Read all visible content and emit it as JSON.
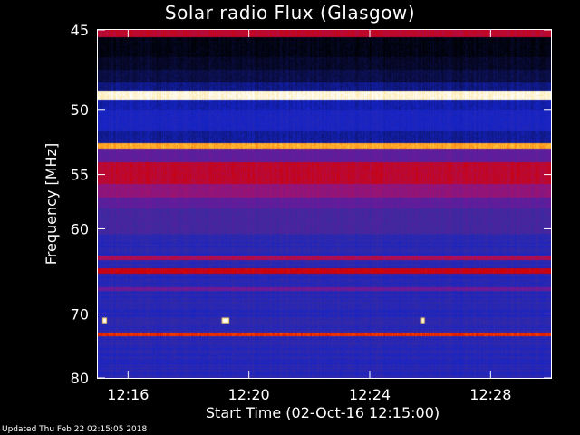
{
  "chart_data": {
    "type": "heatmap",
    "title": "Solar radio Flux (Glasgow)",
    "xlabel": "Start Time (02-Oct-16 12:15:00)",
    "ylabel": "Frequency [MHz]",
    "x_tick_labels": [
      "12:16",
      "12:20",
      "12:24",
      "12:28"
    ],
    "x_tick_minutes": [
      1,
      5,
      9,
      13
    ],
    "x_range_minutes": [
      0,
      15
    ],
    "y_ticks": [
      45,
      50,
      55,
      60,
      70,
      80
    ],
    "y_tick_labels": [
      "45",
      "50",
      "55",
      "60",
      "70",
      "80"
    ],
    "y_range_mhz": [
      45,
      80
    ],
    "y_scale": "reciprocal",
    "background_intensity": 0.28,
    "bands": [
      {
        "f_lo": 45.0,
        "f_hi": 45.4,
        "level": 0.62
      },
      {
        "f_lo": 45.4,
        "f_hi": 46.6,
        "level": 0.03
      },
      {
        "f_lo": 46.6,
        "f_hi": 47.4,
        "level": 0.06
      },
      {
        "f_lo": 47.4,
        "f_hi": 48.2,
        "level": 0.1
      },
      {
        "f_lo": 48.2,
        "f_hi": 48.7,
        "level": 0.16
      },
      {
        "f_lo": 48.7,
        "f_hi": 49.3,
        "level": 0.98
      },
      {
        "f_lo": 49.3,
        "f_hi": 50.0,
        "level": 0.2
      },
      {
        "f_lo": 50.0,
        "f_hi": 51.5,
        "level": 0.24
      },
      {
        "f_lo": 51.5,
        "f_hi": 52.5,
        "level": 0.18
      },
      {
        "f_lo": 52.5,
        "f_hi": 52.9,
        "level": 0.85
      },
      {
        "f_lo": 52.9,
        "f_hi": 54.0,
        "level": 0.42
      },
      {
        "f_lo": 54.0,
        "f_hi": 55.8,
        "level": 0.62
      },
      {
        "f_lo": 55.8,
        "f_hi": 57.0,
        "level": 0.52
      },
      {
        "f_lo": 57.0,
        "f_hi": 58.0,
        "level": 0.42
      },
      {
        "f_lo": 58.0,
        "f_hi": 60.5,
        "level": 0.36
      },
      {
        "f_lo": 62.8,
        "f_hi": 63.3,
        "level": 0.58
      },
      {
        "f_lo": 64.3,
        "f_hi": 64.9,
        "level": 0.65
      },
      {
        "f_lo": 66.5,
        "f_hi": 67.0,
        "level": 0.45
      },
      {
        "f_lo": 72.6,
        "f_hi": 73.2,
        "level": 0.72
      }
    ],
    "bursts": [
      {
        "t_min": 0.15,
        "t_width": 0.15,
        "f_lo": 70.5,
        "f_hi": 71.3,
        "level": 1.0
      },
      {
        "t_min": 4.1,
        "t_width": 0.25,
        "f_lo": 70.5,
        "f_hi": 71.3,
        "level": 1.0
      },
      {
        "t_min": 10.7,
        "t_width": 0.12,
        "f_lo": 70.5,
        "f_hi": 71.3,
        "level": 1.0
      }
    ],
    "colormap": [
      "#000000",
      "#0c1050",
      "#1524c8",
      "#3a2aa0",
      "#6a1a9a",
      "#a4126a",
      "#d00000",
      "#ff6000",
      "#ffd040",
      "#ffffff"
    ]
  },
  "footer": {
    "text": "Updated Thu Feb 22 02:15:05 2018"
  }
}
